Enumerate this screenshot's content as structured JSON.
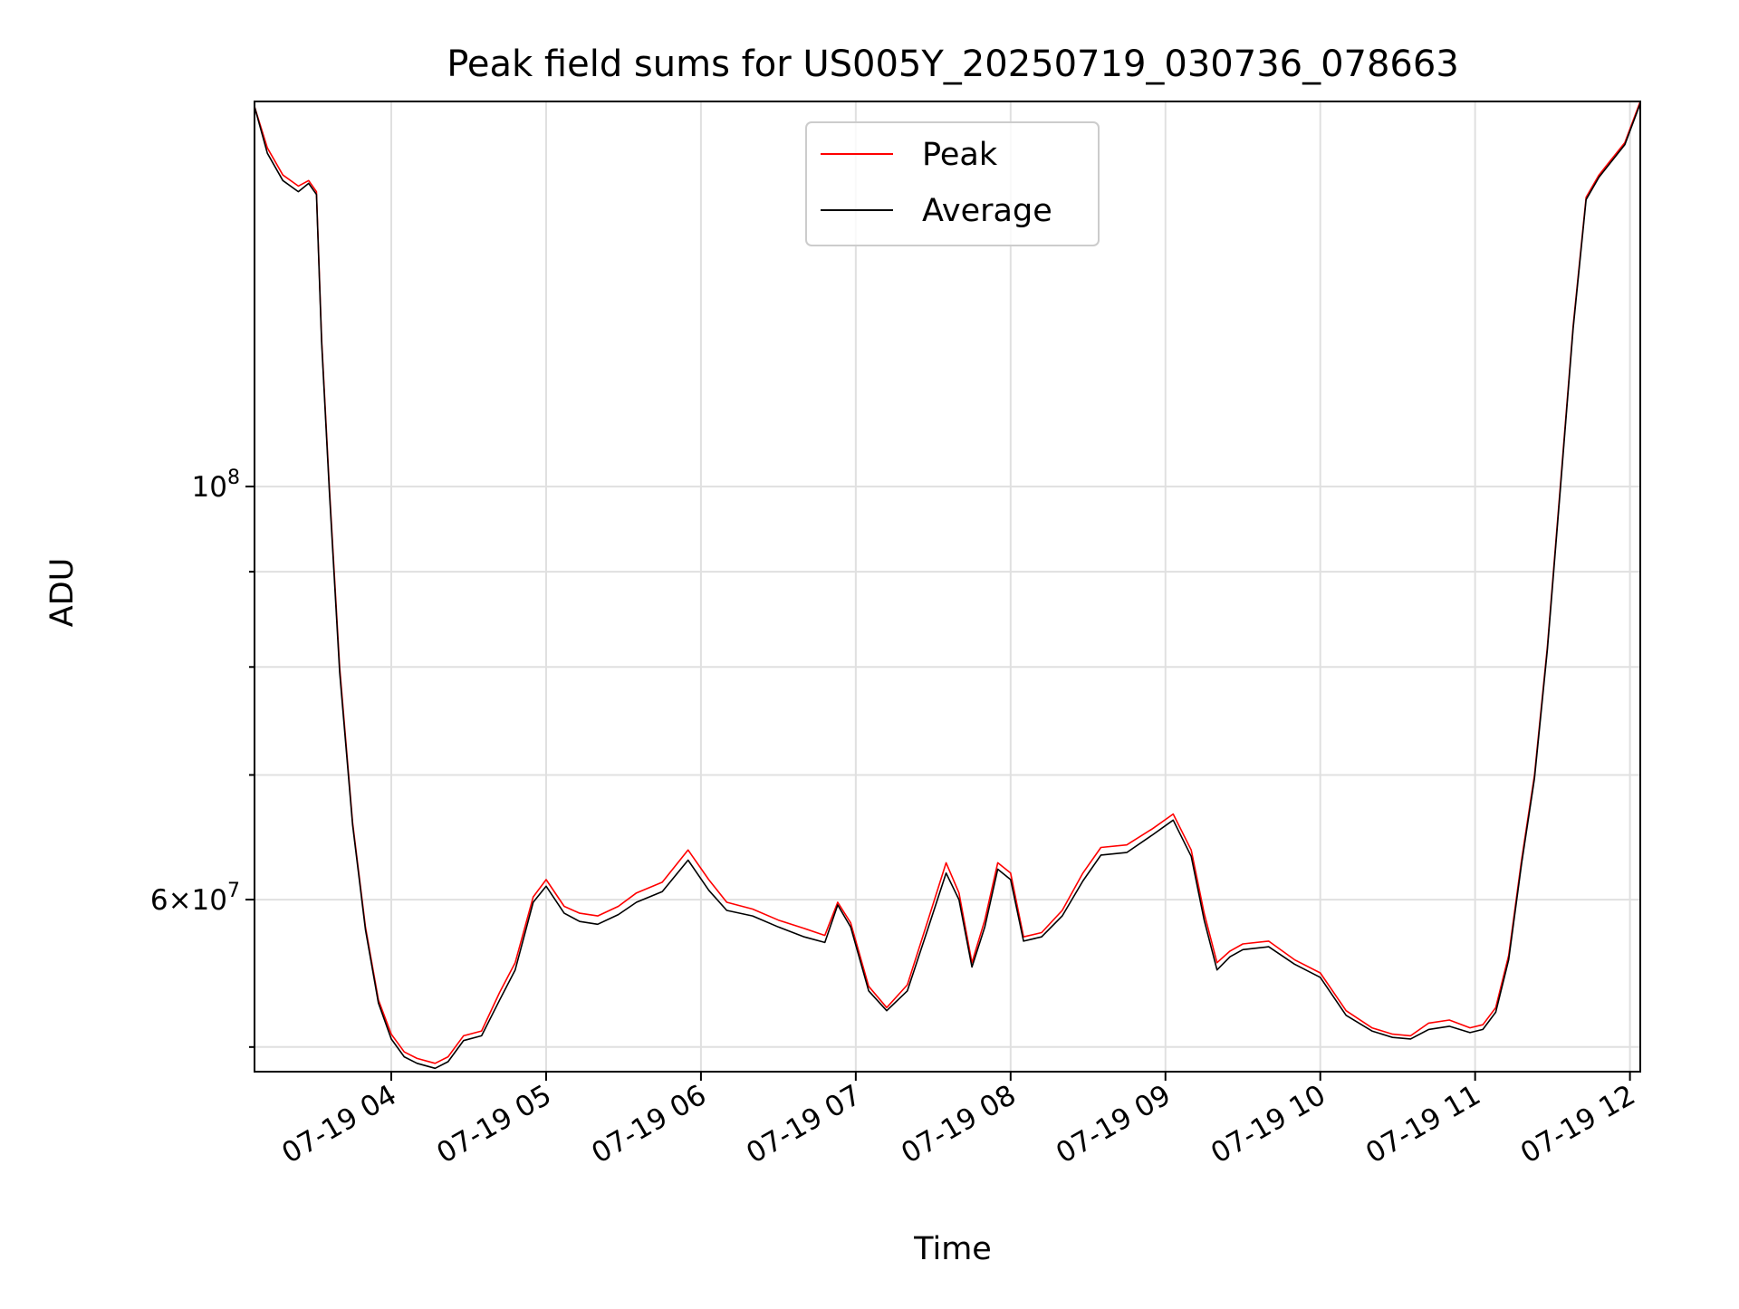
{
  "chart_data": {
    "type": "line",
    "title": "Peak field sums for US005Y_20250719_030736_078663",
    "xlabel": "Time",
    "ylabel": "ADU",
    "yscale": "log",
    "grid": true,
    "legend_position": "top-center",
    "xlim": [
      "2025-07-19 03:07",
      "2025-07-19 12:04"
    ],
    "ylim": [
      48500000,
      161000000
    ],
    "x_ticks": [
      {
        "value": "2025-07-19 04:00",
        "label": "07-19 04"
      },
      {
        "value": "2025-07-19 05:00",
        "label": "07-19 05"
      },
      {
        "value": "2025-07-19 06:00",
        "label": "07-19 06"
      },
      {
        "value": "2025-07-19 07:00",
        "label": "07-19 07"
      },
      {
        "value": "2025-07-19 08:00",
        "label": "07-19 08"
      },
      {
        "value": "2025-07-19 09:00",
        "label": "07-19 09"
      },
      {
        "value": "2025-07-19 10:00",
        "label": "07-19 10"
      },
      {
        "value": "2025-07-19 11:00",
        "label": "07-19 11"
      },
      {
        "value": "2025-07-19 12:00",
        "label": "07-19 12"
      }
    ],
    "y_major_ticks": [
      {
        "value": 100000000,
        "base": "10",
        "exp": "8"
      },
      {
        "value": 60000000,
        "mantissa": "6",
        "base": "10",
        "exp": "7"
      }
    ],
    "y_minor_ticks": [
      50000000,
      70000000,
      80000000,
      90000000
    ],
    "series": [
      {
        "name": "Peak",
        "color": "#ff0000",
        "x": [
          "2025-07-19 03:07",
          "2025-07-19 03:12",
          "2025-07-19 03:18",
          "2025-07-19 03:24",
          "2025-07-19 03:28",
          "2025-07-19 03:31",
          "2025-07-19 03:33",
          "2025-07-19 03:36",
          "2025-07-19 03:40",
          "2025-07-19 03:45",
          "2025-07-19 03:50",
          "2025-07-19 03:55",
          "2025-07-19 04:00",
          "2025-07-19 04:05",
          "2025-07-19 04:10",
          "2025-07-19 04:17",
          "2025-07-19 04:22",
          "2025-07-19 04:28",
          "2025-07-19 04:35",
          "2025-07-19 04:42",
          "2025-07-19 04:48",
          "2025-07-19 04:55",
          "2025-07-19 05:00",
          "2025-07-19 05:07",
          "2025-07-19 05:13",
          "2025-07-19 05:20",
          "2025-07-19 05:28",
          "2025-07-19 05:35",
          "2025-07-19 05:45",
          "2025-07-19 05:55",
          "2025-07-19 06:03",
          "2025-07-19 06:10",
          "2025-07-19 06:20",
          "2025-07-19 06:30",
          "2025-07-19 06:40",
          "2025-07-19 06:48",
          "2025-07-19 06:53",
          "2025-07-19 06:58",
          "2025-07-19 07:05",
          "2025-07-19 07:12",
          "2025-07-19 07:20",
          "2025-07-19 07:28",
          "2025-07-19 07:35",
          "2025-07-19 07:40",
          "2025-07-19 07:45",
          "2025-07-19 07:50",
          "2025-07-19 07:55",
          "2025-07-19 08:00",
          "2025-07-19 08:05",
          "2025-07-19 08:12",
          "2025-07-19 08:20",
          "2025-07-19 08:28",
          "2025-07-19 08:35",
          "2025-07-19 08:45",
          "2025-07-19 08:55",
          "2025-07-19 09:03",
          "2025-07-19 09:10",
          "2025-07-19 09:15",
          "2025-07-19 09:20",
          "2025-07-19 09:25",
          "2025-07-19 09:30",
          "2025-07-19 09:40",
          "2025-07-19 09:50",
          "2025-07-19 10:00",
          "2025-07-19 10:10",
          "2025-07-19 10:20",
          "2025-07-19 10:28",
          "2025-07-19 10:35",
          "2025-07-19 10:42",
          "2025-07-19 10:50",
          "2025-07-19 10:58",
          "2025-07-19 11:03",
          "2025-07-19 11:08",
          "2025-07-19 11:13",
          "2025-07-19 11:18",
          "2025-07-19 11:23",
          "2025-07-19 11:28",
          "2025-07-19 11:33",
          "2025-07-19 11:38",
          "2025-07-19 11:43",
          "2025-07-19 11:48",
          "2025-07-19 11:53",
          "2025-07-19 11:58",
          "2025-07-19 12:04"
        ],
        "y": [
          160000000,
          152000000,
          147000000,
          145000000,
          146000000,
          144000000,
          120000000,
          100000000,
          80000000,
          66000000,
          58000000,
          53000000,
          50800000,
          49700000,
          49300000,
          49000000,
          49400000,
          50700000,
          51000000,
          53500000,
          55500000,
          60200000,
          61500000,
          59500000,
          59000000,
          58800000,
          59500000,
          60500000,
          61300000,
          63800000,
          61500000,
          59800000,
          59300000,
          58500000,
          57900000,
          57400000,
          59800000,
          58300000,
          53900000,
          52500000,
          54000000,
          58500000,
          62800000,
          60500000,
          55500000,
          58500000,
          62800000,
          62000000,
          57300000,
          57600000,
          59200000,
          62000000,
          64000000,
          64200000,
          65500000,
          66700000,
          63800000,
          59000000,
          55500000,
          56300000,
          56800000,
          57000000,
          55700000,
          54800000,
          52300000,
          51200000,
          50800000,
          50700000,
          51500000,
          51700000,
          51200000,
          51400000,
          52500000,
          56000000,
          63000000,
          70000000,
          82000000,
          100000000,
          122000000,
          143000000,
          147000000,
          150000000,
          153000000,
          161000000
        ]
      },
      {
        "name": "Average",
        "color": "#000000",
        "x": [
          "2025-07-19 03:07",
          "2025-07-19 03:12",
          "2025-07-19 03:18",
          "2025-07-19 03:24",
          "2025-07-19 03:28",
          "2025-07-19 03:31",
          "2025-07-19 03:33",
          "2025-07-19 03:36",
          "2025-07-19 03:40",
          "2025-07-19 03:45",
          "2025-07-19 03:50",
          "2025-07-19 03:55",
          "2025-07-19 04:00",
          "2025-07-19 04:05",
          "2025-07-19 04:10",
          "2025-07-19 04:17",
          "2025-07-19 04:22",
          "2025-07-19 04:28",
          "2025-07-19 04:35",
          "2025-07-19 04:42",
          "2025-07-19 04:48",
          "2025-07-19 04:55",
          "2025-07-19 05:00",
          "2025-07-19 05:07",
          "2025-07-19 05:13",
          "2025-07-19 05:20",
          "2025-07-19 05:28",
          "2025-07-19 05:35",
          "2025-07-19 05:45",
          "2025-07-19 05:55",
          "2025-07-19 06:03",
          "2025-07-19 06:10",
          "2025-07-19 06:20",
          "2025-07-19 06:30",
          "2025-07-19 06:40",
          "2025-07-19 06:48",
          "2025-07-19 06:53",
          "2025-07-19 06:58",
          "2025-07-19 07:05",
          "2025-07-19 07:12",
          "2025-07-19 07:20",
          "2025-07-19 07:28",
          "2025-07-19 07:35",
          "2025-07-19 07:40",
          "2025-07-19 07:45",
          "2025-07-19 07:50",
          "2025-07-19 07:55",
          "2025-07-19 08:00",
          "2025-07-19 08:05",
          "2025-07-19 08:12",
          "2025-07-19 08:20",
          "2025-07-19 08:28",
          "2025-07-19 08:35",
          "2025-07-19 08:45",
          "2025-07-19 08:55",
          "2025-07-19 09:03",
          "2025-07-19 09:10",
          "2025-07-19 09:15",
          "2025-07-19 09:20",
          "2025-07-19 09:25",
          "2025-07-19 09:30",
          "2025-07-19 09:40",
          "2025-07-19 09:50",
          "2025-07-19 10:00",
          "2025-07-19 10:10",
          "2025-07-19 10:20",
          "2025-07-19 10:28",
          "2025-07-19 10:35",
          "2025-07-19 10:42",
          "2025-07-19 10:50",
          "2025-07-19 10:58",
          "2025-07-19 11:03",
          "2025-07-19 11:08",
          "2025-07-19 11:13",
          "2025-07-19 11:18",
          "2025-07-19 11:23",
          "2025-07-19 11:28",
          "2025-07-19 11:33",
          "2025-07-19 11:38",
          "2025-07-19 11:43",
          "2025-07-19 11:48",
          "2025-07-19 11:53",
          "2025-07-19 11:58",
          "2025-07-19 12:04"
        ],
        "y": [
          160000000,
          151000000,
          146000000,
          144000000,
          145500000,
          143500000,
          119500000,
          99500000,
          79500000,
          65800000,
          57800000,
          52800000,
          50500000,
          49400000,
          49000000,
          48700000,
          49100000,
          50400000,
          50700000,
          53000000,
          55000000,
          59800000,
          61000000,
          59000000,
          58400000,
          58200000,
          58900000,
          59800000,
          60600000,
          63000000,
          60700000,
          59200000,
          58800000,
          58000000,
          57300000,
          56900000,
          59600000,
          58000000,
          53600000,
          52300000,
          53600000,
          57900000,
          62000000,
          60000000,
          55200000,
          58000000,
          62300000,
          61500000,
          57000000,
          57300000,
          58800000,
          61400000,
          63400000,
          63600000,
          65000000,
          66200000,
          63300000,
          58500000,
          55000000,
          55900000,
          56400000,
          56600000,
          55400000,
          54500000,
          52000000,
          51000000,
          50600000,
          50500000,
          51100000,
          51300000,
          50900000,
          51100000,
          52200000,
          55700000,
          62700000,
          69700000,
          81700000,
          99600000,
          121600000,
          142600000,
          146600000,
          149600000,
          152600000,
          160600000
        ]
      }
    ]
  }
}
